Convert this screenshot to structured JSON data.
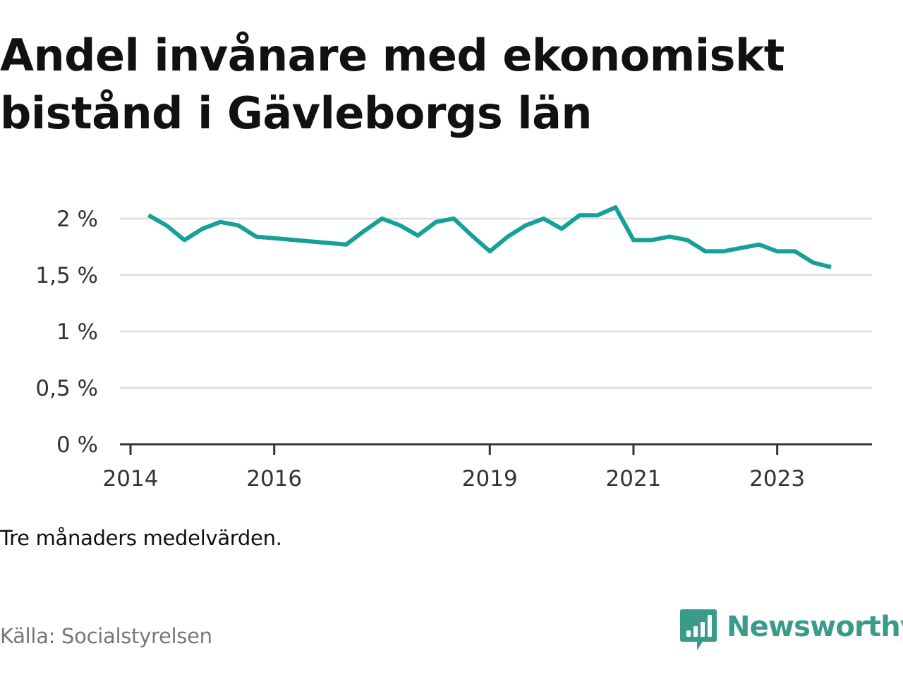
{
  "title": "Andel invånare med ekonomiskt bistånd i Gävleborgs län",
  "note": "Tre månaders medelvärden.",
  "source": "Källa: Socialstyrelsen",
  "brand": {
    "name": "Newsworthy",
    "color": "#3a9b8b",
    "icon": "bar-chart-icon"
  },
  "chart_data": {
    "type": "line",
    "title": "Andel invånare med ekonomiskt bistånd i Gävleborgs län",
    "xlabel": "",
    "ylabel": "",
    "x_range": [
      "2014-01",
      "2024-02"
    ],
    "ylim": [
      0,
      2
    ],
    "x_ticks": [
      {
        "label": "2014",
        "date": "2014-01"
      },
      {
        "label": "2016",
        "date": "2016-01"
      },
      {
        "label": "2019",
        "date": "2019-01"
      },
      {
        "label": "2021",
        "date": "2021-01"
      },
      {
        "label": "2023",
        "date": "2023-01"
      }
    ],
    "y_ticks": [
      {
        "label": "0 %",
        "value": 0
      },
      {
        "label": "0,5 %",
        "value": 0.5
      },
      {
        "label": "1 %",
        "value": 1
      },
      {
        "label": "1,5 %",
        "value": 1.5
      },
      {
        "label": "2 %",
        "value": 2
      }
    ],
    "grid": "horizontal",
    "legend": "none",
    "color": "#17a098",
    "series": [
      {
        "x": [
          "2014-04",
          "2014-07",
          "2014-10",
          "2015-01",
          "2015-04",
          "2015-07",
          "2015-10",
          "2017-01",
          "2017-04",
          "2017-07",
          "2017-10",
          "2018-01",
          "2018-04",
          "2018-07",
          "2018-10",
          "2019-01",
          "2019-04",
          "2019-07",
          "2019-10",
          "2020-01",
          "2020-04",
          "2020-07",
          "2020-10",
          "2021-01",
          "2021-04",
          "2021-07",
          "2021-10",
          "2022-01",
          "2022-04",
          "2022-07",
          "2022-10",
          "2023-01",
          "2023-04",
          "2023-07",
          "2023-10"
        ],
        "values": [
          2.03,
          1.94,
          1.81,
          1.91,
          1.97,
          1.94,
          1.84,
          1.77,
          1.89,
          2.0,
          1.94,
          1.85,
          1.97,
          2.0,
          1.85,
          1.71,
          1.84,
          1.94,
          2.0,
          1.91,
          2.03,
          2.03,
          2.1,
          1.81,
          1.81,
          1.84,
          1.81,
          1.71,
          1.71,
          1.74,
          1.77,
          1.71,
          1.71,
          1.61,
          1.57
        ]
      }
    ]
  }
}
